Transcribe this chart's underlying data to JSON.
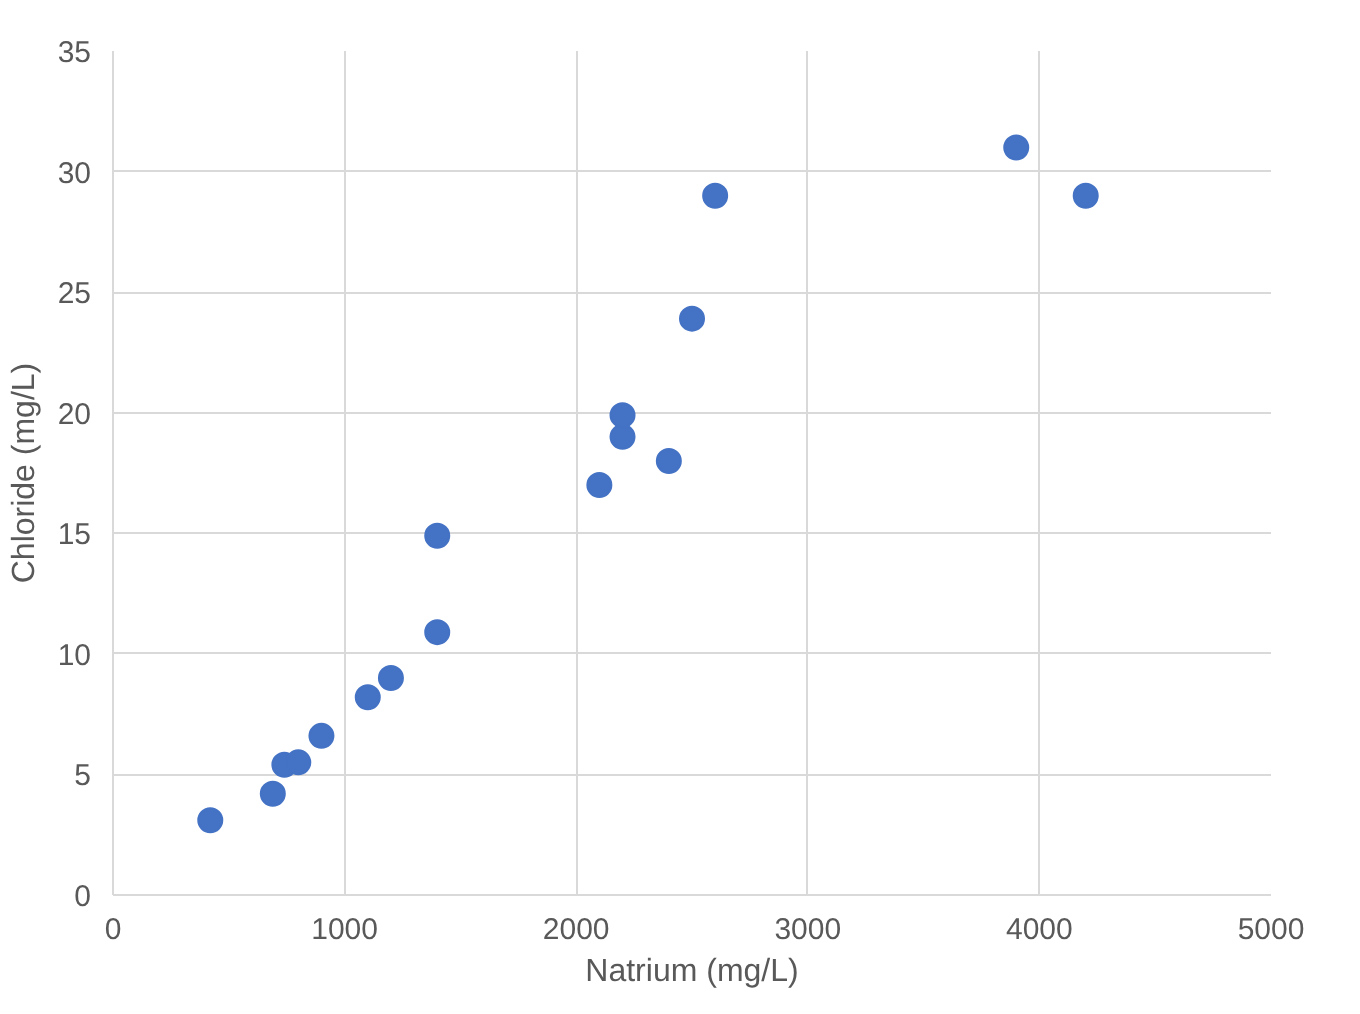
{
  "chart_data": {
    "type": "scatter",
    "xlabel": "Natrium (mg/L)",
    "ylabel": "Chloride (mg/L)",
    "x": [
      420,
      690,
      740,
      800,
      900,
      1100,
      1200,
      1400,
      1400,
      2100,
      2200,
      2200,
      2400,
      2500,
      2600,
      3900,
      4200
    ],
    "series": [
      {
        "color": "#4472c4",
        "values": [
          3.1,
          4.2,
          5.4,
          5.5,
          6.6,
          8.2,
          9.0,
          10.9,
          14.9,
          17.0,
          19.0,
          19.9,
          18.0,
          23.9,
          29.0,
          31.0,
          29.0
        ]
      }
    ],
    "xlim": [
      0,
      5000
    ],
    "xticks": [
      0,
      1000,
      2000,
      3000,
      4000,
      5000
    ],
    "ylim": [
      0,
      35
    ],
    "yticks": [
      0,
      5,
      10,
      15,
      20,
      25,
      30,
      35
    ],
    "grid": true,
    "marker": "circle"
  }
}
